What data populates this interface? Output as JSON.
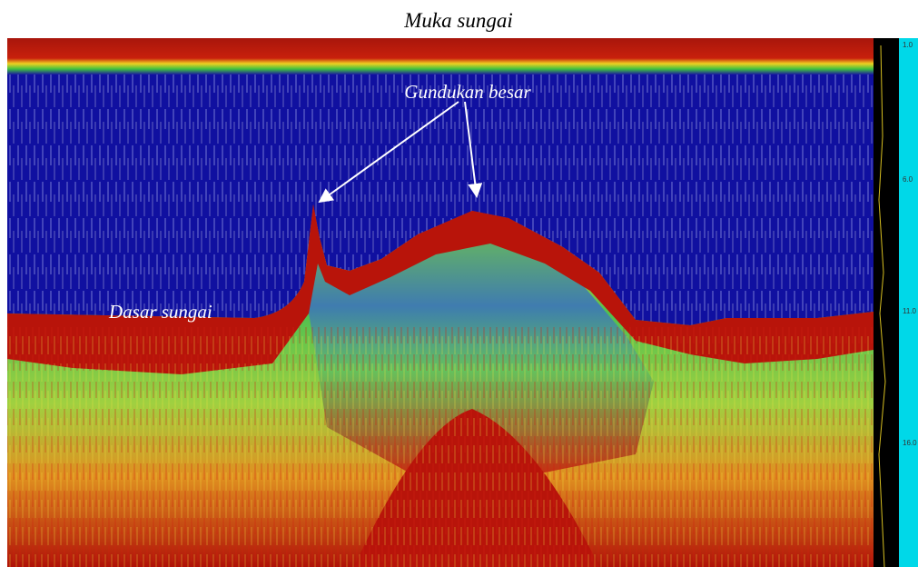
{
  "title": "Muka sungai",
  "annotations": {
    "hump": "Gundukan besar",
    "bottom": "Dasar sungai"
  },
  "depth_scale": [
    "1.0",
    "6.0",
    "11.0",
    "16.0"
  ]
}
